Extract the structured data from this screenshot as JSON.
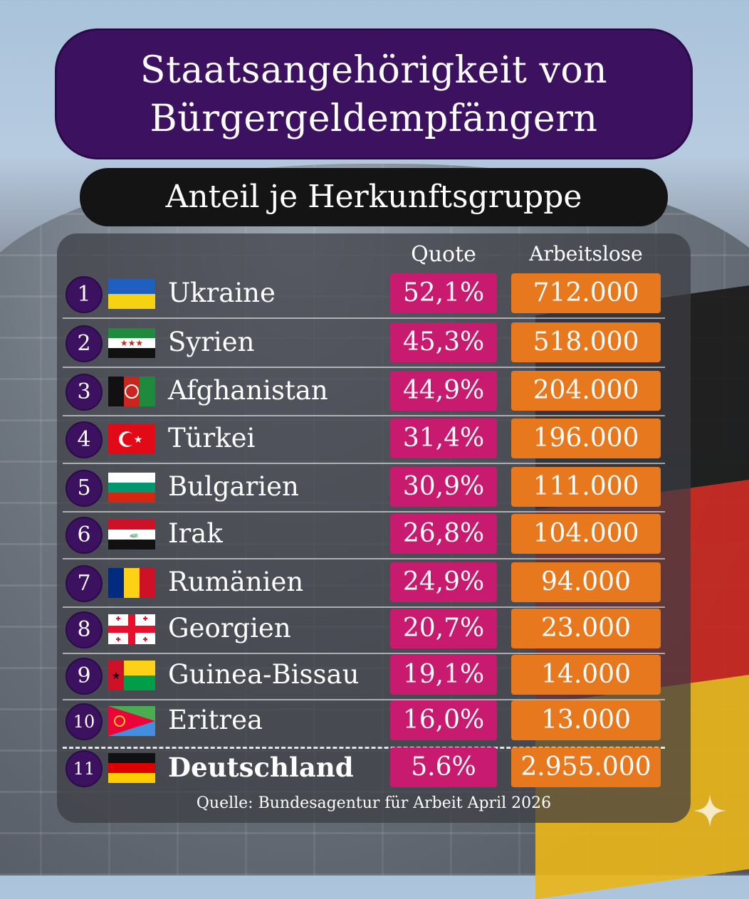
{
  "title_line1": "Staatsangehörigkeit von",
  "title_line2": "Bürgergeldempfängern",
  "subtitle": "Anteil je Herkunftsgruppe",
  "headers": {
    "quote": "Quote",
    "arbeitslose": "Arbeitslose"
  },
  "source": "Quelle: Bundesagentur für Arbeit April 2026",
  "colors": {
    "title_bg": "#3c1260",
    "quote_bg": "#c81a6e",
    "arbeitslose_bg": "#e8781e"
  },
  "chart_data": {
    "type": "table",
    "title": "Staatsangehörigkeit von Bürgergeldempfängern",
    "subtitle": "Anteil je Herkunftsgruppe",
    "columns": [
      "Quote",
      "Arbeitslose"
    ],
    "rows": [
      {
        "rank": "1",
        "country": "Ukraine",
        "flag": "ukraine-flag",
        "quote": "52,1%",
        "arbeitslose": "712.000"
      },
      {
        "rank": "2",
        "country": "Syrien",
        "flag": "syria-flag",
        "quote": "45,3%",
        "arbeitslose": "518.000"
      },
      {
        "rank": "3",
        "country": "Afghanistan",
        "flag": "afghanistan-flag",
        "quote": "44,9%",
        "arbeitslose": "204.000"
      },
      {
        "rank": "4",
        "country": "Türkei",
        "flag": "turkey-flag",
        "quote": "31,4%",
        "arbeitslose": "196.000"
      },
      {
        "rank": "5",
        "country": "Bulgarien",
        "flag": "bulgaria-flag",
        "quote": "30,9%",
        "arbeitslose": "111.000"
      },
      {
        "rank": "6",
        "country": "Irak",
        "flag": "iraq-flag",
        "quote": "26,8%",
        "arbeitslose": "104.000"
      },
      {
        "rank": "7",
        "country": "Rumänien",
        "flag": "romania-flag",
        "quote": "24,9%",
        "arbeitslose": "94.000"
      },
      {
        "rank": "8",
        "country": "Georgien",
        "flag": "georgia-flag",
        "quote": "20,7%",
        "arbeitslose": "23.000"
      },
      {
        "rank": "9",
        "country": "Guinea-Bissau",
        "flag": "guinea-bissau-flag",
        "quote": "19,1%",
        "arbeitslose": "14.000"
      },
      {
        "rank": "10",
        "country": "Eritrea",
        "flag": "eritrea-flag",
        "quote": "16,0%",
        "arbeitslose": "13.000"
      },
      {
        "rank": "11",
        "country": "Deutschland",
        "flag": "germany-flag",
        "quote": "5.6%",
        "arbeitslose": "2.955.000"
      }
    ]
  }
}
